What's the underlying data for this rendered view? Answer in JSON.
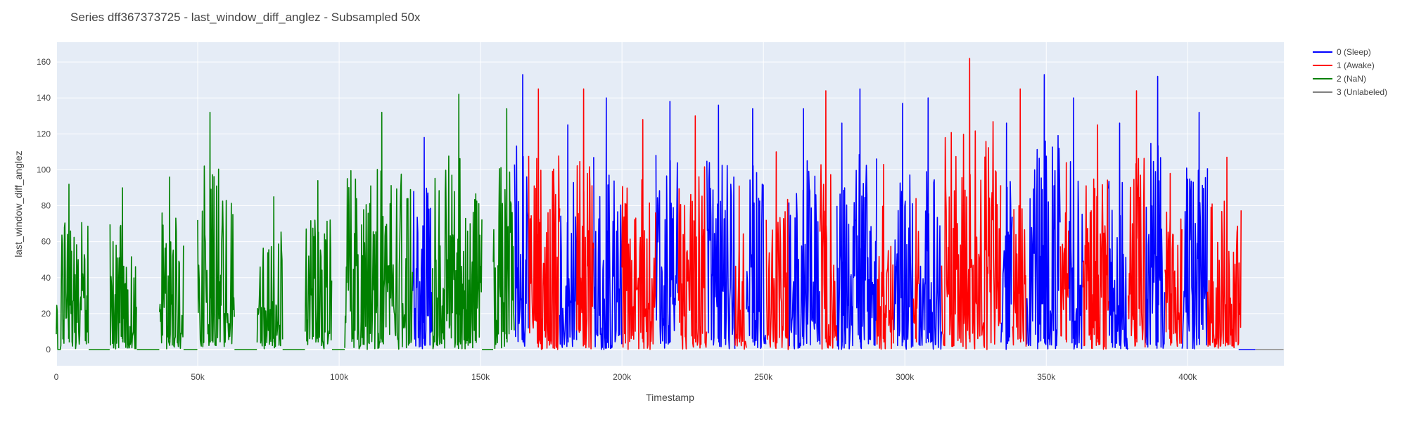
{
  "chart_data": {
    "type": "line",
    "title": "Series dff367373725 - last_window_diff_anglez - Subsampled 50x",
    "xlabel": "Timestamp",
    "ylabel": "last_window_diff_anglez",
    "xlim": [
      0,
      434000
    ],
    "ylim": [
      -9,
      171
    ],
    "x_ticks": [
      {
        "value": 0,
        "label": "0"
      },
      {
        "value": 50000,
        "label": "50k"
      },
      {
        "value": 100000,
        "label": "100k"
      },
      {
        "value": 150000,
        "label": "150k"
      },
      {
        "value": 200000,
        "label": "200k"
      },
      {
        "value": 250000,
        "label": "250k"
      },
      {
        "value": 300000,
        "label": "300k"
      },
      {
        "value": 350000,
        "label": "350k"
      },
      {
        "value": 400000,
        "label": "400k"
      }
    ],
    "y_ticks": [
      {
        "value": 0,
        "label": "0"
      },
      {
        "value": 20,
        "label": "20"
      },
      {
        "value": 40,
        "label": "40"
      },
      {
        "value": 60,
        "label": "60"
      },
      {
        "value": 80,
        "label": "80"
      },
      {
        "value": 100,
        "label": "100"
      },
      {
        "value": 120,
        "label": "120"
      },
      {
        "value": 140,
        "label": "140"
      },
      {
        "value": 160,
        "label": "160"
      }
    ],
    "grid": true,
    "legend_position": "top-right",
    "plot_background": "#e5ecf6",
    "series": [
      {
        "name": "0 (Sleep)",
        "color": "#0000ff",
        "segments": [
          {
            "range": [
              126000,
              133000
            ],
            "peak": 118
          },
          {
            "range": [
              162000,
              167000
            ],
            "peak": 153
          },
          {
            "range": [
              178000,
              184000
            ],
            "peak": 125
          },
          {
            "range": [
              190000,
              200000
            ],
            "peak": 140
          },
          {
            "range": [
              212000,
              220000
            ],
            "peak": 138
          },
          {
            "range": [
              230000,
              240000
            ],
            "peak": 136
          },
          {
            "range": [
              244000,
              251000
            ],
            "peak": 134
          },
          {
            "range": [
              259000,
              270000
            ],
            "peak": 134
          },
          {
            "range": [
              276000,
              281000
            ],
            "peak": 126
          },
          {
            "range": [
              281000,
              290000
            ],
            "peak": 145
          },
          {
            "range": [
              296000,
              303000
            ],
            "peak": 137
          },
          {
            "range": [
              305000,
              313000
            ],
            "peak": 140
          },
          {
            "range": [
              334000,
              338000
            ],
            "peak": 126
          },
          {
            "range": [
              343000,
              355000
            ],
            "peak": 153
          },
          {
            "range": [
              358000,
              363000
            ],
            "peak": 140
          },
          {
            "range": [
              372000,
              379000
            ],
            "peak": 126
          },
          {
            "range": [
              385000,
              392000
            ],
            "peak": 152
          },
          {
            "range": [
              398000,
              407000
            ],
            "peak": 132
          },
          {
            "range": [
              418000,
              424000
            ],
            "peak": 0
          }
        ]
      },
      {
        "name": "1 (Awake)",
        "color": "#ff0000",
        "segments": [
          {
            "range": [
              167000,
              178000
            ],
            "peak": 145
          },
          {
            "range": [
              184000,
              190000
            ],
            "peak": 145
          },
          {
            "range": [
              200000,
              212000
            ],
            "peak": 128
          },
          {
            "range": [
              220000,
              230000
            ],
            "peak": 130
          },
          {
            "range": [
              240000,
              244000
            ],
            "peak": 91
          },
          {
            "range": [
              251000,
              259000
            ],
            "peak": 110
          },
          {
            "range": [
              270000,
              276000
            ],
            "peak": 144
          },
          {
            "range": [
              290000,
              296000
            ],
            "peak": 103
          },
          {
            "range": [
              303000,
              305000
            ],
            "peak": 84
          },
          {
            "range": [
              313000,
              334000
            ],
            "peak": 162
          },
          {
            "range": [
              338000,
              343000
            ],
            "peak": 145
          },
          {
            "range": [
              355000,
              358000
            ],
            "peak": 104
          },
          {
            "range": [
              363000,
              372000
            ],
            "peak": 125
          },
          {
            "range": [
              379000,
              385000
            ],
            "peak": 144
          },
          {
            "range": [
              392000,
              398000
            ],
            "peak": 98
          },
          {
            "range": [
              407000,
              419000
            ],
            "peak": 107
          }
        ]
      },
      {
        "name": "2 (NaN)",
        "color": "#008000",
        "segments": [
          {
            "range": [
              0,
              11500
            ],
            "peak": 92,
            "gaps": [
              [
                500,
                1500
              ]
            ]
          },
          {
            "range": [
              11500,
              19000
            ],
            "peak": 0
          },
          {
            "range": [
              19000,
              28500
            ],
            "peak": 90
          },
          {
            "range": [
              28500,
              36500
            ],
            "peak": 0
          },
          {
            "range": [
              36500,
              45000
            ],
            "peak": 96
          },
          {
            "range": [
              45000,
              50000
            ],
            "peak": 0
          },
          {
            "range": [
              50000,
              63000
            ],
            "peak": 132
          },
          {
            "range": [
              63000,
              71000
            ],
            "peak": 0
          },
          {
            "range": [
              71000,
              80000
            ],
            "peak": 85
          },
          {
            "range": [
              80000,
              88000
            ],
            "peak": 0
          },
          {
            "range": [
              88000,
              97500
            ],
            "peak": 94
          },
          {
            "range": [
              97500,
              102000
            ],
            "peak": 0
          },
          {
            "range": [
              102000,
              126000
            ],
            "peak": 132
          },
          {
            "range": [
              133000,
              150500
            ],
            "peak": 142
          },
          {
            "range": [
              150500,
              154500
            ],
            "peak": 0
          },
          {
            "range": [
              154500,
              162000
            ],
            "peak": 134
          }
        ]
      },
      {
        "name": "3 (Unlabeled)",
        "color": "#808080",
        "segments": [
          {
            "range": [
              424000,
              434000
            ],
            "peak": 0
          }
        ]
      }
    ]
  }
}
